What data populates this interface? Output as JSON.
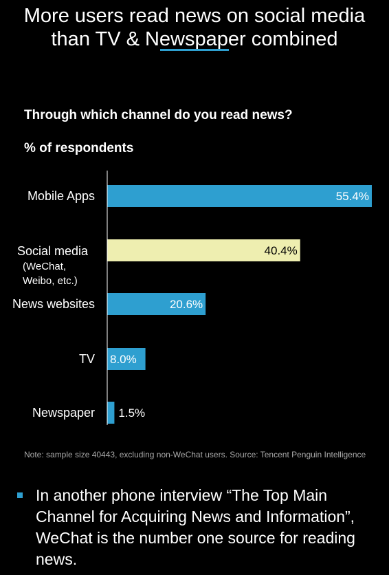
{
  "header": {
    "title_line1": "More users read news on social media",
    "title_line2": "than TV & Newspaper combined"
  },
  "chart_data": {
    "type": "bar",
    "orientation": "horizontal",
    "title": "Through which channel do you read news?",
    "subtitle": "% of respondents",
    "categories": [
      "Mobile Apps",
      "Social media",
      "News websites",
      "TV",
      "Newspaper"
    ],
    "category_sublabels": [
      "",
      "(WeChat,\nWeibo, etc.)",
      "",
      "",
      ""
    ],
    "values": [
      55.4,
      40.4,
      20.6,
      8.0,
      1.5
    ],
    "value_labels": [
      "55.4%",
      "40.4%",
      "20.6%",
      "8.0%",
      "1.5%"
    ],
    "xlim": [
      0,
      55.4
    ],
    "grid": false,
    "legend": "none",
    "colors": {
      "default": "#2e9fd0",
      "highlight": "#eeeeb0",
      "highlight_index": 1
    }
  },
  "note": "Note: sample size 40443, excluding non-WeChat users. Source: Tencent Penguin Intelligence",
  "bullet": {
    "text": "In another phone interview “The Top Main Channel for Acquiring News and Information”, WeChat is the number one source for reading news.",
    "marker_color": "#2e9fd0"
  }
}
